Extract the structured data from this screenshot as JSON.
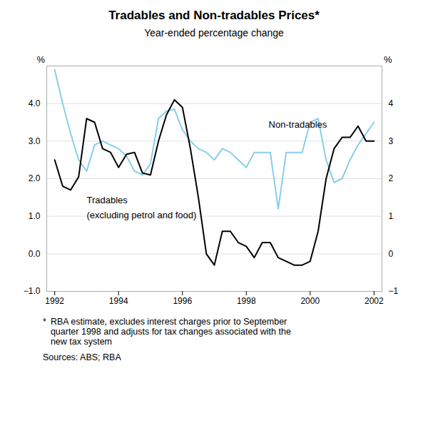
{
  "chart_data": {
    "type": "line",
    "title": "Tradables and Non-tradables Prices*",
    "subtitle": "Year-ended percentage change",
    "ylabel": "%",
    "y2label": "%",
    "x": [
      1992.0,
      1992.25,
      1992.5,
      1992.75,
      1993.0,
      1993.25,
      1993.5,
      1993.75,
      1994.0,
      1994.25,
      1994.5,
      1994.75,
      1995.0,
      1995.25,
      1995.5,
      1995.75,
      1996.0,
      1996.25,
      1996.5,
      1996.75,
      1997.0,
      1997.25,
      1997.5,
      1997.75,
      1998.0,
      1998.25,
      1998.5,
      1998.75,
      1999.0,
      1999.25,
      1999.5,
      1999.75,
      2000.0,
      2000.25,
      2000.5,
      2000.75,
      2001.0,
      2001.25,
      2001.5,
      2001.75,
      2002.0
    ],
    "series": [
      {
        "name": "Non-tradables",
        "color": "#87ceeb",
        "values": [
          4.9,
          4.0,
          3.2,
          2.5,
          2.2,
          2.9,
          3.0,
          2.9,
          2.8,
          2.6,
          2.2,
          2.1,
          2.4,
          3.6,
          3.8,
          3.85,
          3.3,
          3.0,
          2.8,
          2.7,
          2.5,
          2.8,
          2.7,
          2.5,
          2.3,
          2.7,
          2.7,
          2.7,
          1.2,
          2.7,
          2.7,
          2.7,
          3.5,
          3.6,
          2.5,
          1.9,
          2.0,
          2.5,
          2.9,
          3.2,
          3.5
        ]
      },
      {
        "name": "Tradables",
        "color": "#000000",
        "values": [
          2.5,
          1.8,
          1.7,
          2.05,
          3.6,
          3.5,
          2.8,
          2.7,
          2.3,
          2.65,
          2.7,
          2.15,
          2.1,
          3.0,
          3.7,
          4.1,
          3.9,
          2.8,
          1.5,
          0.0,
          -0.3,
          0.6,
          0.6,
          0.3,
          0.2,
          -0.1,
          0.3,
          0.3,
          -0.1,
          -0.2,
          -0.3,
          -0.3,
          -0.2,
          0.6,
          2.0,
          2.8,
          3.1,
          3.1,
          3.4,
          3.0,
          3.0
        ]
      }
    ],
    "annotations": [
      {
        "text": "Non-tradables",
        "x": 1998.7,
        "y": 3.35
      },
      {
        "text": "Tradables",
        "x": 1993.0,
        "y": 1.35
      },
      {
        "text": "(excluding petrol and food)",
        "x": 1993.0,
        "y": 0.95
      }
    ],
    "xlim": [
      1991.75,
      2002.25
    ],
    "xticks": [
      1992,
      1994,
      1996,
      1998,
      2000,
      2002
    ],
    "ylim": [
      -1,
      5
    ],
    "yticks": [
      -1,
      0,
      1,
      2,
      3,
      4
    ],
    "y2lim": [
      -1,
      5
    ],
    "y2ticks": [
      -1,
      0,
      1,
      2,
      3,
      4
    ],
    "grid": true,
    "footnotes": [
      "*",
      "RBA estimate, excludes interest charges prior to September\nquarter 1998 and adjusts for tax changes associated with the\nnew tax system",
      "Sources: ABS; RBA"
    ]
  }
}
